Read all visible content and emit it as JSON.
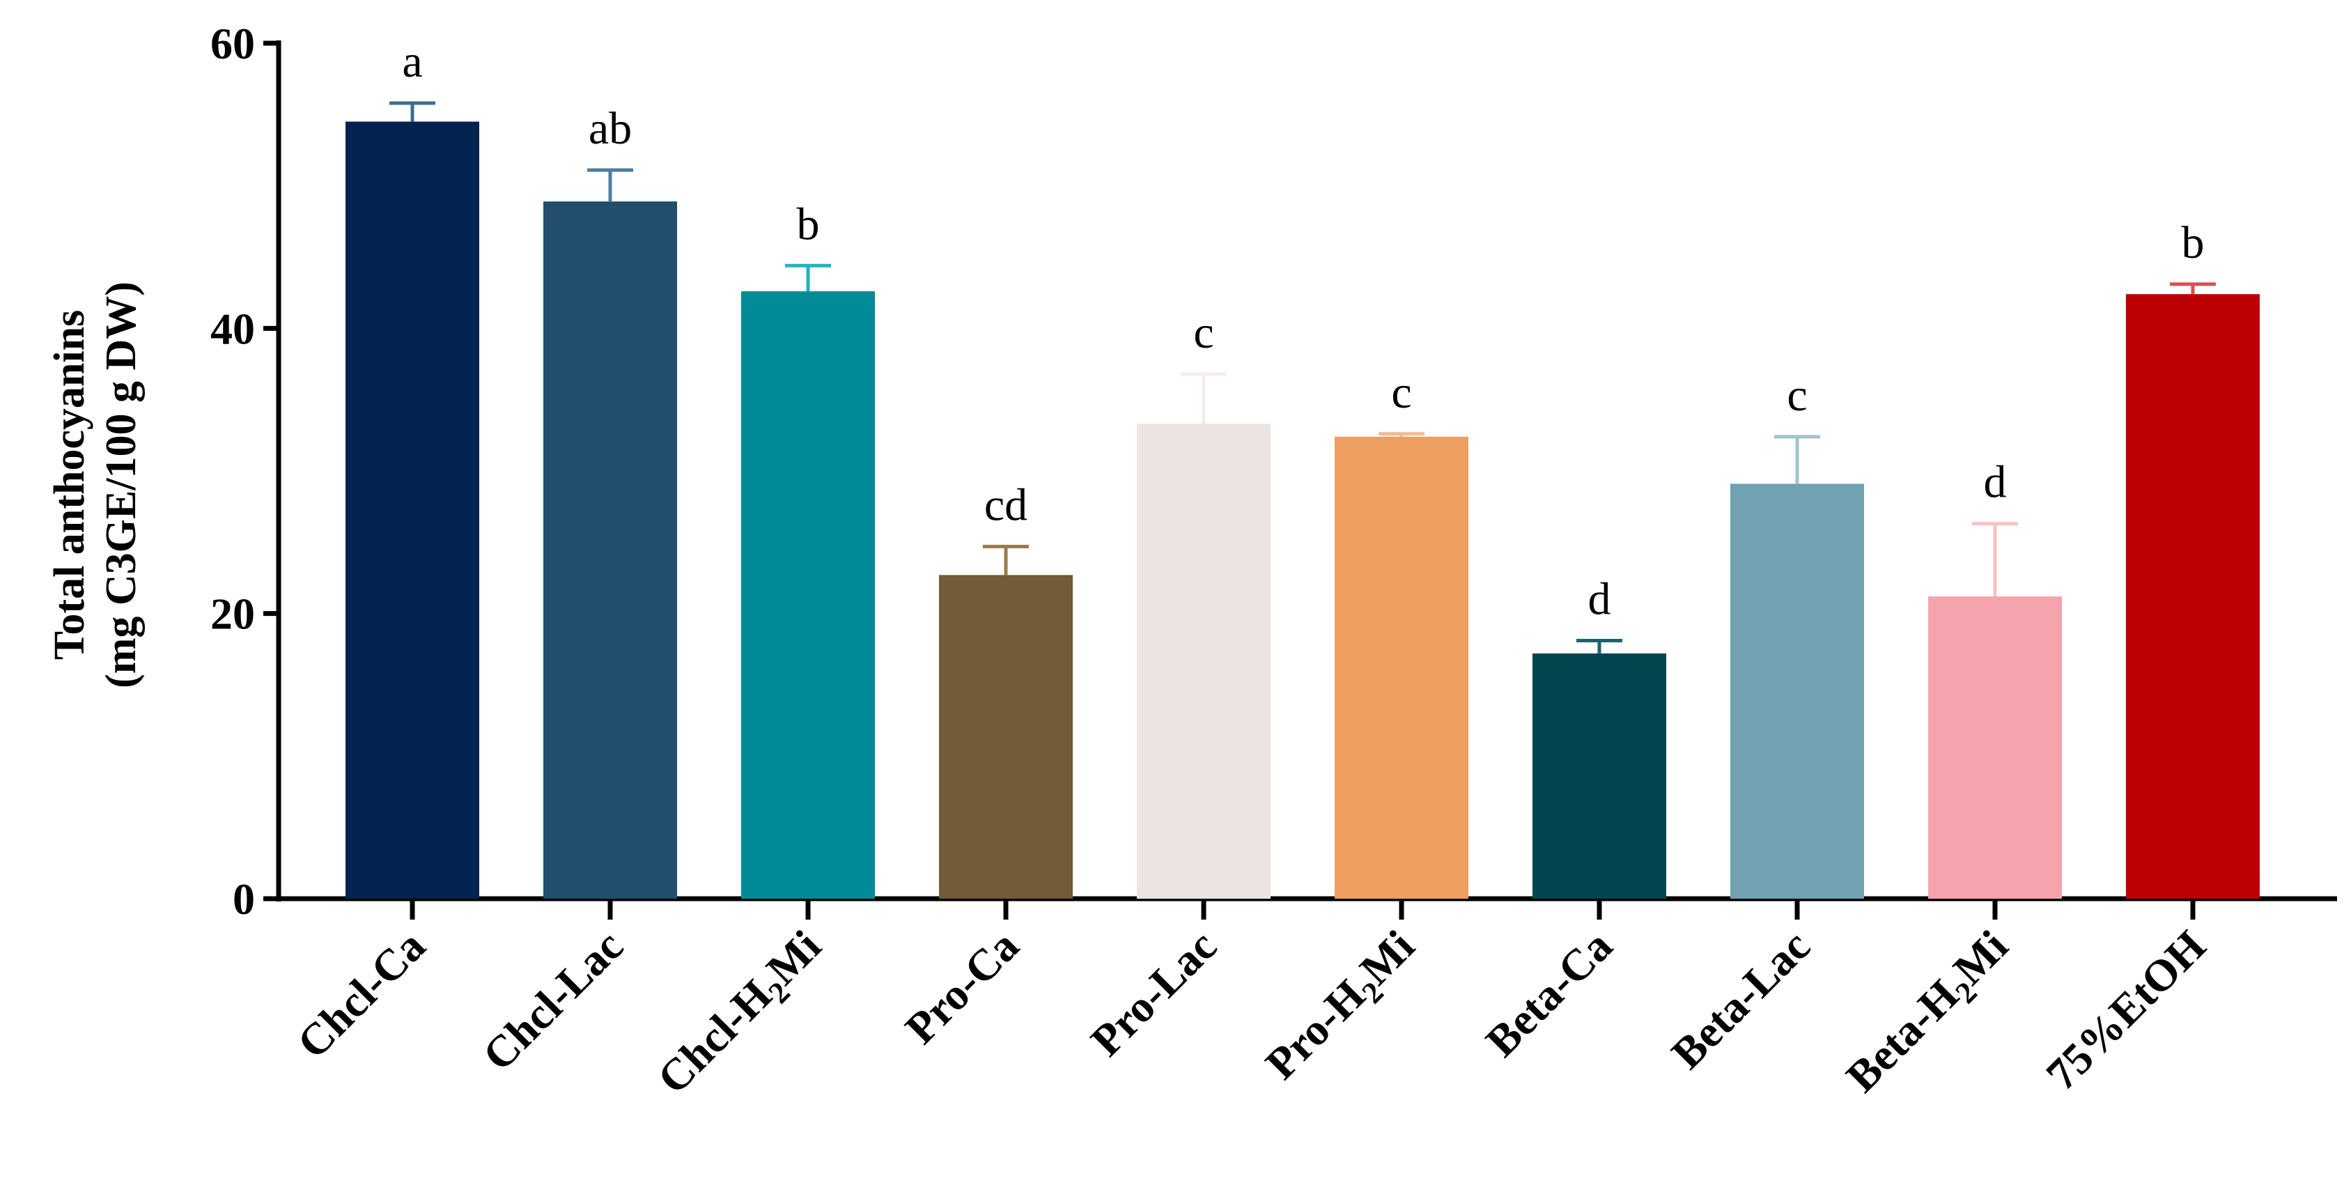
{
  "chart_data": {
    "type": "bar",
    "title": "",
    "xlabel": "",
    "ylabel_lines": [
      "Total anthocyanins",
      "(mg C3GE/100 g DW)"
    ],
    "ylim": [
      0,
      60
    ],
    "yticks": [
      0,
      20,
      40,
      60
    ],
    "grid": false,
    "categories": [
      {
        "pre": "Chcl-",
        "base": "Ca",
        "sub": "",
        "post": ""
      },
      {
        "pre": "Chcl-",
        "base": "Lac",
        "sub": "",
        "post": ""
      },
      {
        "pre": "Chcl-",
        "base": "H",
        "sub": "2",
        "post": "Mi"
      },
      {
        "pre": "Pro-",
        "base": "Ca",
        "sub": "",
        "post": ""
      },
      {
        "pre": "Pro-",
        "base": "Lac",
        "sub": "",
        "post": ""
      },
      {
        "pre": "Pro-",
        "base": "H",
        "sub": "2",
        "post": "Mi"
      },
      {
        "pre": "Beta-",
        "base": "Ca",
        "sub": "",
        "post": ""
      },
      {
        "pre": "Beta-",
        "base": "Lac",
        "sub": "",
        "post": ""
      },
      {
        "pre": "Beta-",
        "base": "H",
        "sub": "2",
        "post": "Mi"
      },
      {
        "pre": "",
        "base": "75%EtOH",
        "sub": "",
        "post": ""
      }
    ],
    "values": [
      54.5,
      48.9,
      42.6,
      22.7,
      33.3,
      32.4,
      17.2,
      29.1,
      21.2,
      42.4
    ],
    "errors": [
      1.3,
      2.2,
      1.8,
      2.0,
      3.5,
      0.2,
      0.9,
      3.3,
      5.1,
      0.7
    ],
    "significance": [
      "a",
      "ab",
      "b",
      "cd",
      "c",
      "c",
      "d",
      "c",
      "d",
      "b"
    ],
    "colors": [
      "#04234f",
      "#214e6c",
      "#008b96",
      "#735a39",
      "#ece4e3",
      "#ee9e60",
      "#034650",
      "#70a2b1",
      "#f5a4ad",
      "#bb0005"
    ],
    "error_colors": [
      "#3f6b95",
      "#4f7e9e",
      "#1cb6c2",
      "#9a7a50",
      "#f4ecec",
      "#f4bb8f",
      "#1a6470",
      "#a5c3cd",
      "#f8c0c6",
      "#d85050"
    ]
  }
}
